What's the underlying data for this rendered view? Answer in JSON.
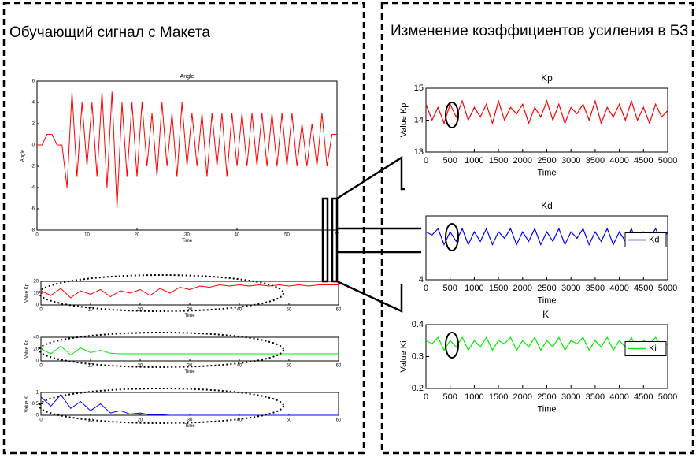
{
  "left_panel": {
    "title": "Обучающий сигнал с Макета"
  },
  "right_panel": {
    "title": "Изменение коэффициентов усиления в БЗ"
  },
  "chart_data": [
    {
      "type": "line",
      "title": "Angle",
      "xlabel": "Time",
      "ylabel": "Angle",
      "x": [
        0,
        1,
        2,
        3,
        4,
        5,
        6,
        7,
        8,
        9,
        10,
        11,
        12,
        13,
        14,
        15,
        16,
        17,
        18,
        19,
        20,
        21,
        22,
        23,
        24,
        25,
        26,
        27,
        28,
        29,
        30,
        31,
        32,
        33,
        34,
        35,
        36,
        37,
        38,
        39,
        40,
        41,
        42,
        43,
        44,
        45,
        46,
        47,
        48,
        49,
        50,
        51,
        52,
        53,
        54,
        55,
        56,
        57,
        58,
        59,
        60
      ],
      "series": [
        {
          "color": "#ff0000",
          "values": [
            0,
            0,
            1,
            1,
            0,
            0,
            -4,
            5,
            -3,
            4,
            -2,
            4,
            -3,
            5,
            -4,
            5,
            -6,
            4,
            -3,
            4,
            -3,
            4,
            -2,
            3,
            -3,
            4,
            -2,
            3,
            -3,
            4,
            -2,
            3,
            -2,
            3,
            -3,
            3,
            -2,
            3,
            -3,
            3,
            -2,
            3,
            -2,
            3,
            -2,
            3,
            -2,
            3,
            -2,
            3,
            -2,
            3,
            -2,
            2,
            -2,
            2,
            -2,
            3,
            -2,
            1,
            1
          ]
        }
      ],
      "xlim": [
        0,
        60
      ],
      "ylim": [
        -8,
        6
      ],
      "xticks": [
        0,
        10,
        20,
        30,
        40,
        50,
        60
      ],
      "yticks": [
        -8,
        -6,
        -4,
        -2,
        0,
        2,
        4,
        6
      ]
    },
    {
      "type": "line",
      "xlabel": "Time",
      "ylabel": "Value Kp",
      "x": [
        0,
        2,
        4,
        6,
        8,
        10,
        12,
        14,
        16,
        18,
        20,
        22,
        24,
        26,
        28,
        30,
        32,
        34,
        36,
        38,
        40,
        42,
        44,
        46,
        48,
        50,
        52,
        54,
        56,
        58,
        60
      ],
      "series": [
        {
          "color": "#ff0000",
          "values": [
            12,
            8,
            14,
            6,
            12,
            9,
            13,
            7,
            12,
            10,
            13,
            8,
            14,
            10,
            15,
            13,
            16,
            15,
            17,
            16,
            17,
            16,
            17,
            16,
            17,
            16,
            17,
            16,
            17,
            17,
            17
          ]
        }
      ],
      "xlim": [
        0,
        60
      ],
      "ylim": [
        0,
        20
      ],
      "xticks": [
        0,
        10,
        20,
        30,
        40,
        50,
        60
      ],
      "yticks": [
        0,
        10,
        20
      ]
    },
    {
      "type": "line",
      "xlabel": "Time",
      "ylabel": "Value Kd",
      "x": [
        0,
        2,
        4,
        6,
        8,
        10,
        12,
        14,
        16,
        18,
        20,
        22,
        24,
        26,
        28,
        30,
        32,
        34,
        36,
        38,
        40,
        42,
        44,
        46,
        48,
        50,
        52,
        54,
        56,
        58,
        60
      ],
      "series": [
        {
          "color": "#00ee00",
          "values": [
            20,
            12,
            25,
            10,
            22,
            14,
            18,
            13,
            12,
            12,
            12,
            12,
            12,
            12,
            12,
            12,
            12,
            12,
            12,
            12,
            12,
            12,
            12,
            12,
            12,
            12,
            12,
            12,
            12,
            12,
            12
          ]
        }
      ],
      "xlim": [
        0,
        60
      ],
      "ylim": [
        0,
        40
      ],
      "xticks": [
        0,
        10,
        20,
        30,
        40,
        50,
        60
      ],
      "yticks": [
        0,
        20,
        40
      ]
    },
    {
      "type": "line",
      "xlabel": "Time",
      "ylabel": "Value Ki",
      "x": [
        0,
        2,
        4,
        6,
        8,
        10,
        12,
        14,
        16,
        18,
        20,
        22,
        24,
        26,
        28,
        30,
        32,
        34,
        36,
        38,
        40,
        42,
        44,
        46,
        48,
        50,
        52,
        54,
        56,
        58,
        60
      ],
      "series": [
        {
          "color": "#0000ff",
          "values": [
            0.8,
            0.4,
            0.9,
            0.3,
            0.6,
            0.2,
            0.5,
            0.1,
            0.2,
            0.05,
            0.1,
            0.02,
            0.03,
            0,
            0,
            0,
            0,
            0,
            0,
            0,
            0,
            0,
            0,
            0,
            0,
            0,
            0,
            0,
            0,
            0,
            0
          ]
        }
      ],
      "xlim": [
        0,
        60
      ],
      "ylim": [
        0,
        1
      ],
      "xticks": [
        0,
        10,
        20,
        30,
        40,
        50,
        60
      ],
      "yticks": [
        0,
        0.5,
        1
      ]
    },
    {
      "type": "line",
      "title": "Kp",
      "xlabel": "Time",
      "ylabel": "Value Kp",
      "x": [
        0,
        125,
        250,
        375,
        500,
        625,
        750,
        875,
        1000,
        1125,
        1250,
        1375,
        1500,
        1625,
        1750,
        1875,
        2000,
        2125,
        2250,
        2375,
        2500,
        2625,
        2750,
        2875,
        3000,
        3125,
        3250,
        3375,
        3500,
        3625,
        3750,
        3875,
        4000,
        4125,
        4250,
        4375,
        4500,
        4625,
        4750,
        4875,
        5000
      ],
      "series": [
        {
          "color": "#ff0000",
          "values": [
            14.5,
            14.0,
            14.4,
            13.9,
            14.5,
            14.1,
            14.6,
            14.0,
            14.4,
            14.1,
            14.5,
            13.9,
            14.6,
            14.0,
            14.4,
            14.2,
            14.5,
            13.9,
            14.4,
            14.1,
            14.6,
            14.0,
            14.5,
            13.9,
            14.4,
            14.2,
            14.5,
            14.0,
            14.6,
            13.9,
            14.4,
            14.1,
            14.5,
            14.0,
            14.6,
            14.0,
            14.4,
            13.9,
            14.5,
            14.1,
            14.3
          ]
        }
      ],
      "xlim": [
        0,
        5000
      ],
      "ylim": [
        13,
        15
      ],
      "xticks": [
        0,
        500,
        1000,
        1500,
        2000,
        2500,
        3000,
        3500,
        4000,
        4500,
        5000
      ],
      "yticks": [
        13,
        14,
        15
      ]
    },
    {
      "type": "line",
      "title": "Kd",
      "xlabel": "Time",
      "legend": "right",
      "x": [
        0,
        125,
        250,
        375,
        500,
        625,
        750,
        875,
        1000,
        1125,
        1250,
        1375,
        1500,
        1625,
        1750,
        1875,
        2000,
        2125,
        2250,
        2375,
        2500,
        2625,
        2750,
        2875,
        3000,
        3125,
        3250,
        3375,
        3500,
        3625,
        3750,
        3875,
        4000,
        4125,
        4250,
        4375,
        4500,
        4625,
        4750,
        4875,
        5000
      ],
      "series": [
        {
          "name": "Kd",
          "color": "#0000ff",
          "values": [
            5.5,
            5.4,
            5.6,
            5.1,
            5.5,
            5.2,
            5.6,
            5.1,
            5.5,
            5.2,
            5.6,
            5.1,
            5.5,
            5.3,
            5.6,
            5.1,
            5.5,
            5.2,
            5.6,
            5.1,
            5.5,
            5.2,
            5.6,
            5.1,
            5.5,
            5.3,
            5.6,
            5.1,
            5.5,
            5.2,
            5.6,
            5.1,
            5.5,
            5.2,
            5.6,
            5.1,
            5.5,
            5.3,
            5.6,
            5.2,
            5.5
          ]
        }
      ],
      "xlim": [
        0,
        5000
      ],
      "ylim": [
        4,
        6
      ],
      "xticks": [
        0,
        500,
        1000,
        1500,
        2000,
        2500,
        3000,
        3500,
        4000,
        4500,
        5000
      ],
      "yticks": [
        4
      ]
    },
    {
      "type": "line",
      "title": "Ki",
      "xlabel": "Time",
      "ylabel": "Value Ki",
      "legend": "right",
      "x": [
        0,
        125,
        250,
        375,
        500,
        625,
        750,
        875,
        1000,
        1125,
        1250,
        1375,
        1500,
        1625,
        1750,
        1875,
        2000,
        2125,
        2250,
        2375,
        2500,
        2625,
        2750,
        2875,
        3000,
        3125,
        3250,
        3375,
        3500,
        3625,
        3750,
        3875,
        4000,
        4125,
        4250,
        4375,
        4500,
        4625,
        4750,
        4875,
        5000
      ],
      "series": [
        {
          "name": "Ki",
          "color": "#00ee00",
          "values": [
            0.35,
            0.34,
            0.36,
            0.32,
            0.35,
            0.33,
            0.36,
            0.32,
            0.35,
            0.33,
            0.36,
            0.32,
            0.35,
            0.34,
            0.36,
            0.32,
            0.35,
            0.33,
            0.36,
            0.32,
            0.35,
            0.33,
            0.36,
            0.32,
            0.35,
            0.34,
            0.36,
            0.32,
            0.35,
            0.33,
            0.36,
            0.32,
            0.35,
            0.33,
            0.36,
            0.32,
            0.35,
            0.34,
            0.36,
            0.33,
            0.34
          ]
        }
      ],
      "xlim": [
        0,
        5000
      ],
      "ylim": [
        0.2,
        0.4
      ],
      "xticks": [
        0,
        500,
        1000,
        1500,
        2000,
        2500,
        3000,
        3500,
        4000,
        4500,
        5000
      ],
      "yticks": [
        0.2,
        0.3,
        0.4
      ]
    }
  ]
}
